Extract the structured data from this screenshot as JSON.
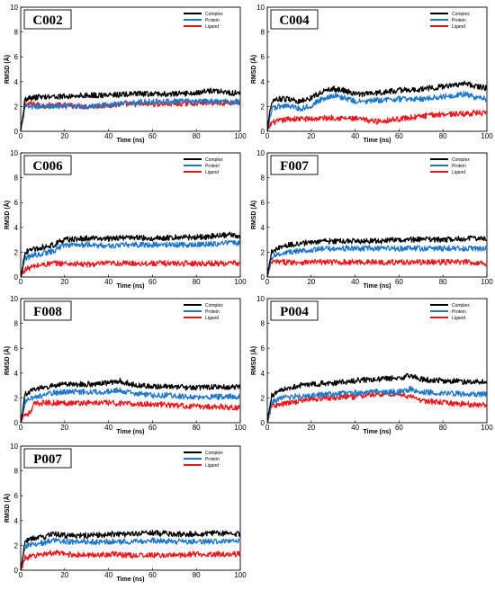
{
  "colors": {
    "complex": "#000000",
    "protein": "#1f77c8",
    "ligand": "#e8181c"
  },
  "chart_data": [
    {
      "type": "line",
      "title": "C002",
      "xlabel": "Time (ns)",
      "ylabel": "RMSD (Å)",
      "xlim": [
        0,
        100
      ],
      "ylim": [
        0,
        10
      ],
      "xticks": [
        "0",
        "20",
        "40",
        "60",
        "80",
        "100"
      ],
      "yticks": [
        "0",
        "2",
        "4",
        "6",
        "8",
        "10"
      ],
      "legend": "top-right",
      "series": [
        {
          "name": "Complex",
          "x": [
            0,
            2,
            5,
            10,
            20,
            30,
            40,
            50,
            60,
            70,
            80,
            88,
            95,
            100
          ],
          "y": [
            0,
            2.6,
            2.7,
            2.8,
            2.8,
            2.9,
            2.9,
            3.0,
            3.0,
            3.0,
            3.1,
            3.3,
            3.1,
            3.1
          ]
        },
        {
          "name": "Protein",
          "x": [
            0,
            2,
            5,
            10,
            20,
            30,
            40,
            50,
            60,
            70,
            80,
            90,
            100
          ],
          "y": [
            0,
            2.0,
            2.0,
            2.0,
            2.0,
            2.0,
            2.1,
            2.3,
            2.4,
            2.4,
            2.4,
            2.4,
            2.4
          ]
        },
        {
          "name": "Ligand",
          "x": [
            0,
            2,
            5,
            10,
            20,
            30,
            40,
            50,
            60,
            70,
            80,
            90,
            100
          ],
          "y": [
            0,
            2.2,
            2.2,
            2.1,
            2.1,
            2.0,
            2.1,
            2.2,
            2.2,
            2.2,
            2.3,
            2.3,
            2.3
          ]
        }
      ]
    },
    {
      "type": "line",
      "title": "C004",
      "xlabel": "Time (ns)",
      "ylabel": "RMSD (Å)",
      "xlim": [
        0,
        100
      ],
      "ylim": [
        0,
        10
      ],
      "xticks": [
        "0",
        "20",
        "40",
        "60",
        "80",
        "100"
      ],
      "yticks": [
        "0",
        "2",
        "4",
        "6",
        "8",
        "10"
      ],
      "legend": "top-right",
      "series": [
        {
          "name": "Complex",
          "x": [
            0,
            2,
            5,
            10,
            15,
            20,
            25,
            30,
            35,
            40,
            45,
            50,
            60,
            70,
            80,
            90,
            95,
            100
          ],
          "y": [
            0,
            2.5,
            2.6,
            2.6,
            2.4,
            2.7,
            3.2,
            3.4,
            3.3,
            3.0,
            3.0,
            3.1,
            3.3,
            3.4,
            3.6,
            3.9,
            3.6,
            3.5
          ]
        },
        {
          "name": "Protein",
          "x": [
            0,
            2,
            5,
            10,
            15,
            20,
            25,
            30,
            35,
            40,
            45,
            50,
            60,
            70,
            80,
            90,
            95,
            100
          ],
          "y": [
            0,
            1.8,
            2.0,
            2.1,
            1.8,
            2.1,
            2.6,
            2.9,
            2.7,
            2.4,
            2.4,
            2.5,
            2.6,
            2.6,
            2.8,
            3.0,
            2.7,
            2.6
          ]
        },
        {
          "name": "Ligand",
          "x": [
            0,
            2,
            5,
            10,
            20,
            30,
            40,
            50,
            55,
            60,
            70,
            80,
            90,
            95,
            100
          ],
          "y": [
            0,
            0.7,
            0.8,
            1.0,
            1.0,
            1.1,
            1.0,
            0.8,
            0.9,
            1.0,
            1.2,
            1.4,
            1.4,
            1.5,
            1.4
          ]
        }
      ]
    },
    {
      "type": "line",
      "title": "C006",
      "xlabel": "Time (ns)",
      "ylabel": "RMSD (Å)",
      "xlim": [
        0,
        100
      ],
      "ylim": [
        0,
        10
      ],
      "xticks": [
        "0",
        "20",
        "40",
        "60",
        "80",
        "100"
      ],
      "yticks": [
        "0",
        "2",
        "4",
        "6",
        "8",
        "10"
      ],
      "legend": "top-right",
      "series": [
        {
          "name": "Complex",
          "x": [
            0,
            2,
            5,
            10,
            15,
            20,
            30,
            40,
            50,
            60,
            70,
            80,
            90,
            95,
            100
          ],
          "y": [
            0,
            2.0,
            2.2,
            2.4,
            2.6,
            3.0,
            3.1,
            3.1,
            3.2,
            3.1,
            3.2,
            3.2,
            3.3,
            3.4,
            3.3
          ]
        },
        {
          "name": "Protein",
          "x": [
            0,
            2,
            5,
            10,
            15,
            20,
            30,
            40,
            50,
            60,
            70,
            80,
            90,
            95,
            100
          ],
          "y": [
            0,
            1.5,
            1.7,
            1.9,
            2.1,
            2.6,
            2.6,
            2.5,
            2.6,
            2.6,
            2.6,
            2.6,
            2.7,
            2.8,
            2.7
          ]
        },
        {
          "name": "Ligand",
          "x": [
            0,
            1,
            2,
            5,
            10,
            15,
            20,
            30,
            40,
            50,
            60,
            70,
            80,
            90,
            100
          ],
          "y": [
            0,
            0.4,
            0.6,
            0.8,
            1.0,
            1.1,
            1.1,
            1.0,
            1.1,
            1.1,
            1.1,
            1.1,
            1.1,
            1.1,
            1.1
          ]
        }
      ]
    },
    {
      "type": "line",
      "title": "F007",
      "xlabel": "Time (ns)",
      "ylabel": "RMSD (Å)",
      "xlim": [
        0,
        100
      ],
      "ylim": [
        0,
        10
      ],
      "xticks": [
        "0",
        "20",
        "40",
        "60",
        "80",
        "100"
      ],
      "yticks": [
        "0",
        "2",
        "4",
        "6",
        "8",
        "10"
      ],
      "legend": "top-right",
      "series": [
        {
          "name": "Complex",
          "x": [
            0,
            2,
            5,
            10,
            15,
            20,
            30,
            40,
            50,
            60,
            70,
            80,
            90,
            100
          ],
          "y": [
            0,
            2.0,
            2.3,
            2.6,
            2.7,
            2.8,
            2.9,
            2.9,
            2.9,
            3.0,
            3.0,
            3.0,
            3.1,
            3.1
          ]
        },
        {
          "name": "Protein",
          "x": [
            0,
            2,
            5,
            10,
            15,
            20,
            30,
            40,
            50,
            60,
            70,
            80,
            90,
            100
          ],
          "y": [
            0,
            1.6,
            1.8,
            2.0,
            2.1,
            2.2,
            2.3,
            2.3,
            2.3,
            2.3,
            2.3,
            2.3,
            2.3,
            2.3
          ]
        },
        {
          "name": "Ligand",
          "x": [
            0,
            2,
            5,
            10,
            20,
            30,
            40,
            50,
            60,
            70,
            80,
            90,
            100
          ],
          "y": [
            0,
            1.2,
            1.2,
            1.2,
            1.2,
            1.2,
            1.2,
            1.2,
            1.2,
            1.2,
            1.2,
            1.2,
            1.1
          ]
        }
      ]
    },
    {
      "type": "line",
      "title": "F008",
      "xlabel": "Time (ns)",
      "ylabel": "RMSD (Å)",
      "xlim": [
        0,
        100
      ],
      "ylim": [
        0,
        10
      ],
      "xticks": [
        "0",
        "20",
        "40",
        "60",
        "80",
        "100"
      ],
      "yticks": [
        "0",
        "2",
        "4",
        "6",
        "8",
        "10"
      ],
      "legend": "top-right",
      "series": [
        {
          "name": "Complex",
          "x": [
            0,
            2,
            5,
            10,
            15,
            20,
            30,
            40,
            45,
            50,
            60,
            70,
            80,
            90,
            100
          ],
          "y": [
            0,
            2.3,
            2.6,
            2.8,
            3.0,
            3.1,
            3.1,
            3.2,
            3.4,
            3.1,
            2.9,
            2.9,
            2.8,
            2.9,
            2.9
          ]
        },
        {
          "name": "Protein",
          "x": [
            0,
            2,
            5,
            10,
            15,
            20,
            30,
            40,
            45,
            50,
            60,
            70,
            80,
            90,
            100
          ],
          "y": [
            0,
            1.7,
            2.0,
            2.2,
            2.4,
            2.5,
            2.5,
            2.5,
            2.6,
            2.4,
            2.2,
            2.2,
            2.0,
            2.1,
            2.1
          ]
        },
        {
          "name": "Ligand",
          "x": [
            0,
            1,
            3,
            5,
            6,
            10,
            20,
            30,
            40,
            50,
            60,
            70,
            80,
            90,
            100
          ],
          "y": [
            0,
            0.6,
            0.7,
            0.9,
            1.5,
            1.6,
            1.6,
            1.6,
            1.6,
            1.5,
            1.5,
            1.4,
            1.3,
            1.3,
            1.2
          ]
        }
      ]
    },
    {
      "type": "line",
      "title": "P004",
      "xlabel": "Time (ns)",
      "ylabel": "RMSD (Å)",
      "xlim": [
        0,
        100
      ],
      "ylim": [
        0,
        10
      ],
      "xticks": [
        "0",
        "20",
        "40",
        "60",
        "80",
        "100"
      ],
      "yticks": [
        "0",
        "2",
        "4",
        "6",
        "8",
        "10"
      ],
      "legend": "top-right",
      "series": [
        {
          "name": "Complex",
          "x": [
            0,
            2,
            5,
            10,
            15,
            20,
            30,
            40,
            50,
            60,
            65,
            70,
            80,
            90,
            100
          ],
          "y": [
            0,
            2.2,
            2.5,
            2.8,
            3.0,
            3.1,
            3.2,
            3.4,
            3.5,
            3.6,
            3.8,
            3.5,
            3.4,
            3.3,
            3.3
          ]
        },
        {
          "name": "Protein",
          "x": [
            0,
            2,
            5,
            10,
            20,
            30,
            40,
            50,
            60,
            65,
            70,
            80,
            90,
            100
          ],
          "y": [
            0,
            1.6,
            1.9,
            2.1,
            2.2,
            2.3,
            2.4,
            2.5,
            2.5,
            2.7,
            2.5,
            2.4,
            2.3,
            2.3
          ]
        },
        {
          "name": "Ligand",
          "x": [
            0,
            2,
            5,
            10,
            20,
            30,
            40,
            50,
            60,
            65,
            70,
            80,
            90,
            100
          ],
          "y": [
            0,
            1.4,
            1.4,
            1.6,
            1.9,
            2.0,
            2.1,
            2.3,
            2.3,
            2.1,
            1.8,
            1.6,
            1.5,
            1.4
          ]
        }
      ]
    },
    {
      "type": "line",
      "title": "P007",
      "xlabel": "Time (ns)",
      "ylabel": "RMSD (Å)",
      "xlim": [
        0,
        100
      ],
      "ylim": [
        0,
        10
      ],
      "xticks": [
        "0",
        "20",
        "40",
        "60",
        "80",
        "100"
      ],
      "yticks": [
        "0",
        "2",
        "4",
        "6",
        "8",
        "10"
      ],
      "legend": "top-right",
      "series": [
        {
          "name": "Complex",
          "x": [
            0,
            2,
            5,
            10,
            15,
            20,
            30,
            40,
            50,
            60,
            70,
            80,
            90,
            100
          ],
          "y": [
            0,
            2.4,
            2.6,
            2.7,
            2.9,
            2.8,
            2.8,
            2.9,
            2.9,
            3.0,
            2.9,
            2.9,
            3.0,
            2.9
          ]
        },
        {
          "name": "Protein",
          "x": [
            0,
            2,
            5,
            10,
            15,
            20,
            30,
            40,
            50,
            60,
            70,
            80,
            90,
            100
          ],
          "y": [
            0,
            1.9,
            2.1,
            2.2,
            2.4,
            2.3,
            2.3,
            2.3,
            2.3,
            2.4,
            2.3,
            2.3,
            2.3,
            2.3
          ]
        },
        {
          "name": "Ligand",
          "x": [
            0,
            2,
            5,
            10,
            15,
            20,
            30,
            40,
            50,
            60,
            70,
            80,
            90,
            100
          ],
          "y": [
            0,
            1.0,
            1.1,
            1.3,
            1.4,
            1.3,
            1.2,
            1.3,
            1.2,
            1.2,
            1.2,
            1.3,
            1.3,
            1.3
          ]
        }
      ]
    }
  ]
}
